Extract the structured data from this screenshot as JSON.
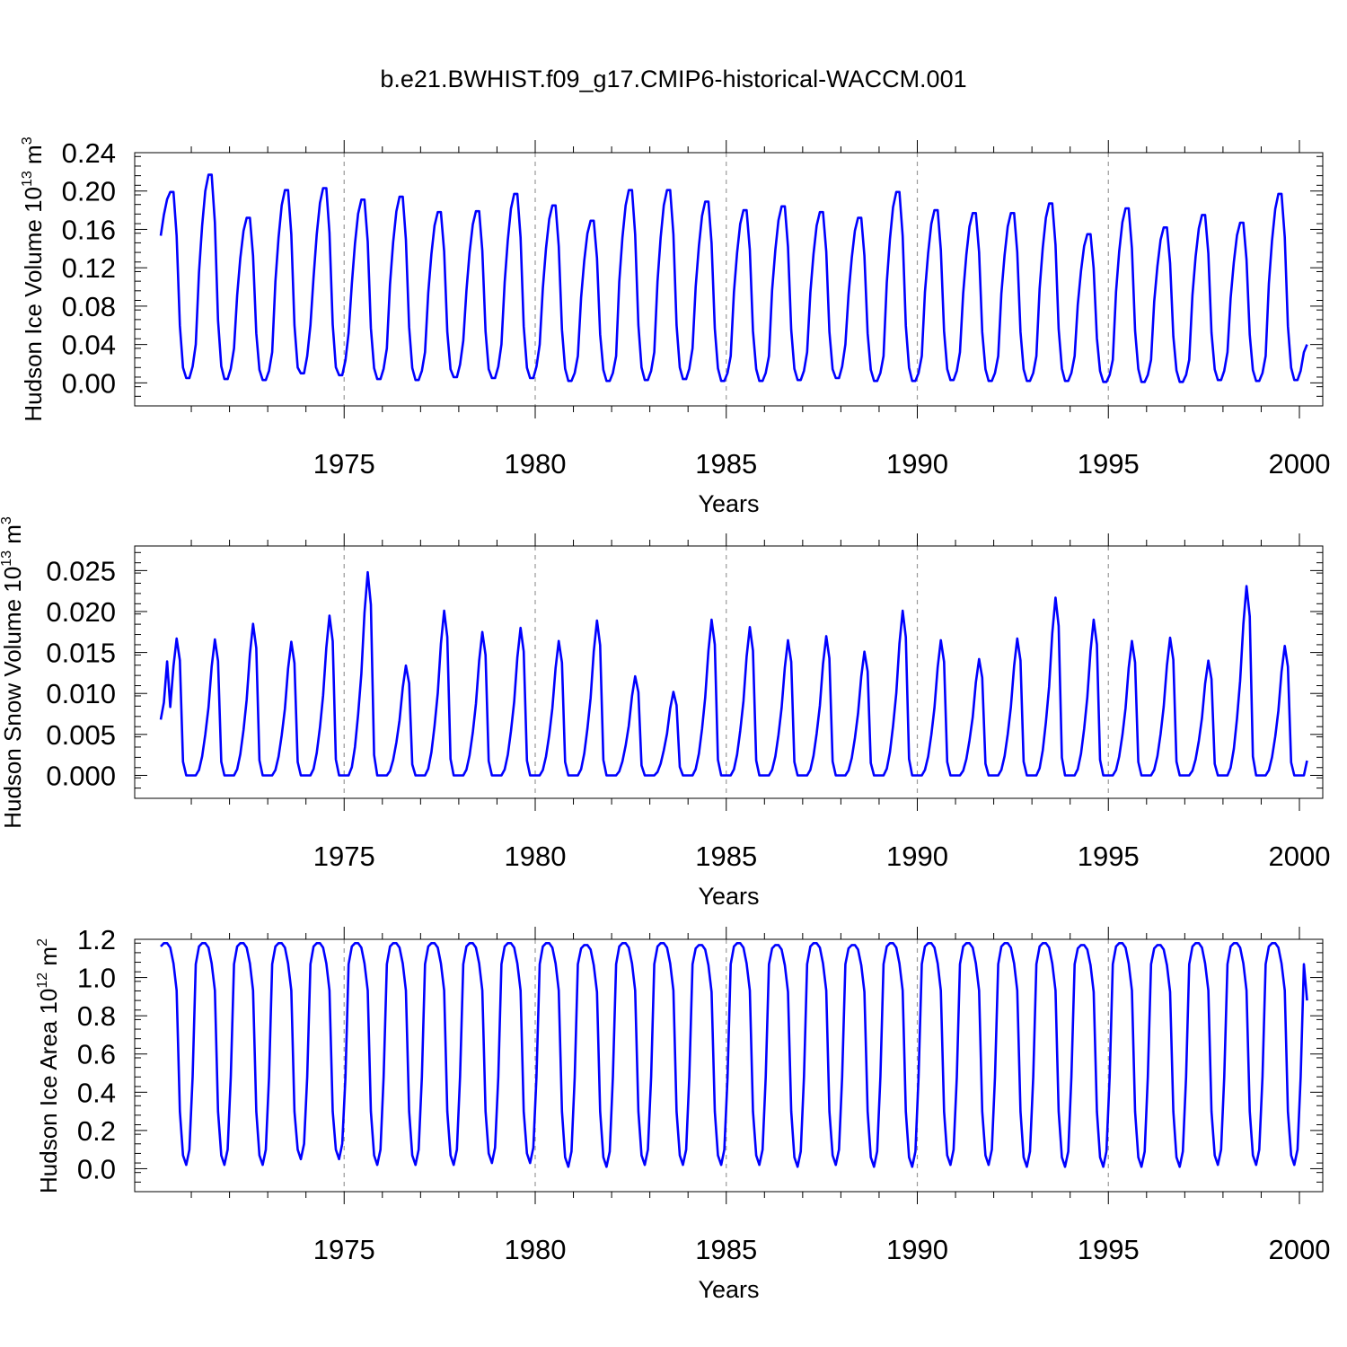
{
  "figure_title": "b.e21.BWHIST.f09_g17.CMIP6-historical-WACCM.001",
  "colors": {
    "line": "#0000ff",
    "axis": "#000000",
    "grid": "#999999"
  },
  "chart_data": [
    {
      "type": "line",
      "title": "b.e21.BWHIST.f09_g17.CMIP6-historical-WACCM.001",
      "xlabel": "Years",
      "ylabel": {
        "text": "Hudson Ice Volume 10",
        "exp": "13",
        "unit": " m",
        "unit_exp": "3"
      },
      "xlim": [
        1970.2,
        2000
      ],
      "ylim": [
        -0.024,
        0.24
      ],
      "x_ticks": [
        1975,
        1980,
        1985,
        1990,
        1995,
        2000
      ],
      "x_tick_labels": [
        "1975",
        "1980",
        "1985",
        "1990",
        "1995",
        "2000"
      ],
      "y_ticks": [
        0.0,
        0.04,
        0.08,
        0.12,
        0.16,
        0.2,
        0.24
      ],
      "y_tick_labels": [
        "0.00",
        "0.04",
        "0.08",
        "0.12",
        "0.16",
        "0.20",
        "0.24"
      ],
      "vgrid_years": [
        1975,
        1980,
        1985,
        1990,
        1995
      ],
      "hline": null,
      "series": [
        {
          "name": "Hudson Ice Volume",
          "start_year": 1970.2,
          "peaks": [
            0.199,
            0.217,
            0.172,
            0.201,
            0.203,
            0.191,
            0.194,
            0.178,
            0.179,
            0.197,
            0.185,
            0.169,
            0.201,
            0.201,
            0.189,
            0.18,
            0.184,
            0.178,
            0.172,
            0.199,
            0.18,
            0.177,
            0.177,
            0.187,
            0.155,
            0.182,
            0.162,
            0.175,
            0.167,
            0.197
          ],
          "minima": [
            0.005,
            0.004,
            0.003,
            0.01,
            0.008,
            0.004,
            0.003,
            0.006,
            0.005,
            0.005,
            0.002,
            0.002,
            0.003,
            0.004,
            0.002,
            0.002,
            0.003,
            0.005,
            0.002,
            0.002,
            0.003,
            0.002,
            0.002,
            0.002,
            0.001,
            0.001,
            0.001,
            0.003,
            0.002,
            0.003
          ],
          "end_value": 0.04
        }
      ]
    },
    {
      "type": "line",
      "xlabel": "Years",
      "ylabel": {
        "text": "Hudson Snow Volume 10",
        "exp": "13",
        "unit": " m",
        "unit_exp": "3"
      },
      "xlim": [
        1970.2,
        2000
      ],
      "ylim": [
        -0.0028,
        0.028
      ],
      "x_ticks": [
        1975,
        1980,
        1985,
        1990,
        1995,
        2000
      ],
      "x_tick_labels": [
        "1975",
        "1980",
        "1985",
        "1990",
        "1995",
        "2000"
      ],
      "y_ticks": [
        0.0,
        0.005,
        0.01,
        0.015,
        0.02,
        0.025
      ],
      "y_tick_labels": [
        "0.000",
        "0.005",
        "0.010",
        "0.015",
        "0.020",
        "0.025"
      ],
      "vgrid_years": [
        1975,
        1980,
        1985,
        1990,
        1995
      ],
      "hline": null,
      "series": [
        {
          "name": "Hudson Snow Volume",
          "start_year": 1970.2,
          "first_value": 0.0068,
          "peaks": [
            0.0167,
            0.0166,
            0.0185,
            0.0163,
            0.0195,
            0.0248,
            0.0134,
            0.0201,
            0.0175,
            0.018,
            0.0164,
            0.0189,
            0.0121,
            0.0102,
            0.019,
            0.0181,
            0.0165,
            0.017,
            0.0151,
            0.0201,
            0.0165,
            0.0142,
            0.0167,
            0.0217,
            0.019,
            0.0164,
            0.0168,
            0.014,
            0.0231,
            0.0158
          ],
          "end_value": 0.0018
        }
      ]
    },
    {
      "type": "line",
      "xlabel": "Years",
      "ylabel": {
        "text": "Hudson Ice Area 10",
        "exp": "12",
        "unit": " m",
        "unit_exp": "2"
      },
      "xlim": [
        1970.2,
        2000
      ],
      "ylim": [
        -0.12,
        1.2
      ],
      "x_ticks": [
        1975,
        1980,
        1985,
        1990,
        1995,
        2000
      ],
      "x_tick_labels": [
        "1975",
        "1980",
        "1985",
        "1990",
        "1995",
        "2000"
      ],
      "y_ticks": [
        0.0,
        0.2,
        0.4,
        0.6,
        0.8,
        1.0,
        1.2
      ],
      "y_tick_labels": [
        "0.0",
        "0.2",
        "0.4",
        "0.6",
        "0.8",
        "1.0",
        "1.2"
      ],
      "vgrid_years": [
        1975,
        1980,
        1985,
        1990,
        1995
      ],
      "hline": 1.2,
      "series": [
        {
          "name": "Hudson Ice Area",
          "start_year": 1970.2,
          "peaks": [
            1.18,
            1.18,
            1.18,
            1.18,
            1.18,
            1.18,
            1.18,
            1.18,
            1.18,
            1.18,
            1.18,
            1.17,
            1.18,
            1.18,
            1.17,
            1.18,
            1.17,
            1.18,
            1.17,
            1.18,
            1.18,
            1.18,
            1.18,
            1.18,
            1.17,
            1.18,
            1.17,
            1.18,
            1.18,
            1.18
          ],
          "minima": [
            0.02,
            0.02,
            0.02,
            0.05,
            0.05,
            0.02,
            0.02,
            0.02,
            0.03,
            0.03,
            0.01,
            0.01,
            0.02,
            0.02,
            0.02,
            0.02,
            0.01,
            0.02,
            0.01,
            0.01,
            0.02,
            0.02,
            0.01,
            0.01,
            0.01,
            0.01,
            0.01,
            0.02,
            0.02,
            0.02
          ],
          "end_value": 0.88
        }
      ]
    }
  ]
}
